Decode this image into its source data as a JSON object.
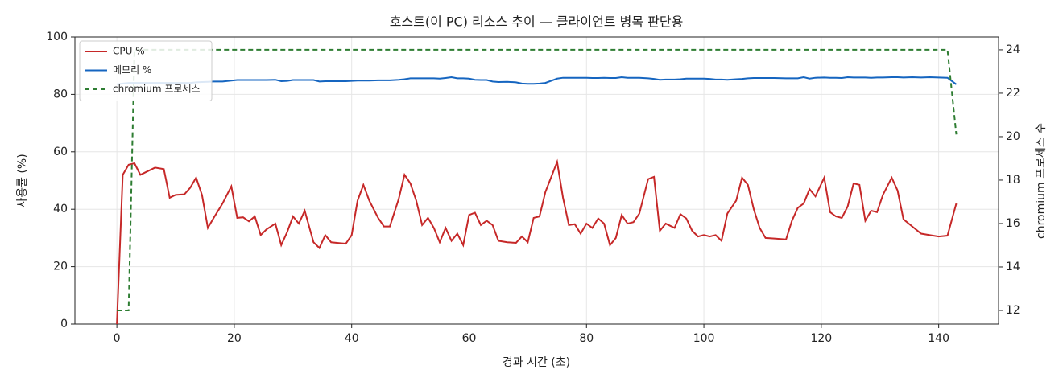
{
  "chart_data": {
    "type": "line",
    "title": "호스트(이 PC) 리소스 추이 — 클라이언트 병목 판단용",
    "xlabel": "경과 시간 (초)",
    "ylabel": "사용률 (%)",
    "y2label": "chromium 프로세스 수",
    "x": [
      0,
      1,
      2,
      3,
      4,
      5,
      6.5,
      8,
      9,
      10,
      11.5,
      12.5,
      13.5,
      14.5,
      15.5,
      16.5,
      18,
      19.5,
      20.5,
      21.5,
      22.5,
      23.5,
      24.5,
      25.5,
      27,
      28,
      29,
      30,
      31,
      32,
      33.5,
      34.5,
      35.5,
      36.5,
      38,
      39,
      40,
      41,
      42,
      43,
      44.5,
      45.5,
      46.5,
      48,
      49,
      50,
      51,
      52,
      53,
      54,
      55,
      56,
      57,
      58,
      59,
      60,
      61,
      62,
      63,
      64,
      65,
      66.5,
      68,
      69,
      70,
      71,
      72,
      73,
      75,
      76,
      77,
      78,
      79,
      80,
      81,
      82,
      83,
      84,
      85,
      86,
      87,
      88,
      89,
      90.5,
      91.5,
      92.5,
      93.5,
      95,
      96,
      97,
      98,
      99,
      100,
      101,
      102,
      103,
      104,
      105.5,
      106.5,
      107.5,
      108.5,
      109.5,
      110.5,
      112,
      114,
      115,
      116,
      117,
      118,
      119,
      120.5,
      121.5,
      122.5,
      123.5,
      124.5,
      125.5,
      126.5,
      127.5,
      128.5,
      129.5,
      130.5,
      132,
      133,
      134,
      135.5,
      137,
      138.5,
      140,
      141.5,
      143
    ],
    "series": [
      {
        "name": "CPU %",
        "color": "#c62828",
        "linestyle": "solid",
        "axis": "y",
        "values": [
          0,
          52,
          55.5,
          56,
          52,
          53,
          54.5,
          54,
          44,
          45,
          45.2,
          47.5,
          51,
          45,
          33.5,
          37,
          42,
          48,
          37,
          37.2,
          35.8,
          37.5,
          31,
          33,
          35,
          27.5,
          32,
          37.5,
          35,
          39.5,
          28.5,
          26.5,
          31,
          28.5,
          28.2,
          28,
          31,
          43,
          48.5,
          43,
          37,
          34,
          34,
          43.5,
          52,
          49,
          43,
          34.5,
          37,
          33.5,
          28.5,
          33.5,
          29,
          31.5,
          27.5,
          38,
          38.8,
          34.5,
          36,
          34.5,
          29,
          28.5,
          28.3,
          30.5,
          28.5,
          37,
          37.5,
          46,
          56.5,
          44,
          34.5,
          34.8,
          31.5,
          35,
          33.5,
          36.8,
          35,
          27.5,
          30,
          38,
          35,
          35.5,
          38.5,
          50.5,
          51.3,
          32.5,
          35,
          33.5,
          38.3,
          36.8,
          32.5,
          30.5,
          31,
          30.5,
          31,
          29,
          38.5,
          43,
          51,
          48.5,
          40,
          33.5,
          30,
          29.8,
          29.5,
          36,
          40.5,
          42,
          47,
          44.5,
          51,
          39,
          37.5,
          37,
          41,
          49,
          48.5,
          36,
          39.5,
          39,
          45,
          51,
          46.5,
          36.5,
          34,
          31.5,
          31,
          30.5,
          30.8,
          42
        ]
      },
      {
        "name": "메모리 %",
        "color": "#1565c0",
        "linestyle": "solid",
        "axis": "y",
        "values": [
          83.5,
          83.8,
          84,
          84,
          84,
          84,
          84,
          84,
          84,
          84,
          84,
          84,
          84.2,
          84.3,
          84.4,
          84.5,
          84.5,
          84.8,
          85,
          85,
          85,
          85,
          85,
          85,
          85.1,
          84.6,
          84.7,
          85,
          85,
          85,
          85,
          84.5,
          84.6,
          84.6,
          84.6,
          84.6,
          84.7,
          84.8,
          84.8,
          84.8,
          84.9,
          84.9,
          84.9,
          85.1,
          85.3,
          85.6,
          85.6,
          85.6,
          85.6,
          85.6,
          85.5,
          85.7,
          86,
          85.6,
          85.6,
          85.5,
          85.1,
          85,
          85,
          84.5,
          84.3,
          84.4,
          84.2,
          83.8,
          83.7,
          83.7,
          83.8,
          84,
          85.5,
          85.8,
          85.8,
          85.8,
          85.8,
          85.8,
          85.7,
          85.7,
          85.8,
          85.7,
          85.7,
          86,
          85.8,
          85.8,
          85.8,
          85.6,
          85.4,
          85.1,
          85.2,
          85.2,
          85.3,
          85.5,
          85.5,
          85.5,
          85.5,
          85.4,
          85.2,
          85.2,
          85.1,
          85.3,
          85.4,
          85.6,
          85.7,
          85.7,
          85.7,
          85.7,
          85.6,
          85.6,
          85.6,
          86,
          85.5,
          85.8,
          85.9,
          85.8,
          85.8,
          85.7,
          86,
          85.9,
          85.9,
          85.9,
          85.8,
          85.9,
          85.9,
          86,
          86,
          85.9,
          86,
          85.9,
          86,
          85.9,
          85.8,
          83.5
        ]
      },
      {
        "name": "chromium 프로세스",
        "color": "#2e7d32",
        "linestyle": "dashed",
        "axis": "y2",
        "values": [
          12,
          12,
          12,
          24,
          24,
          24,
          24,
          24,
          24,
          24,
          24,
          24,
          24,
          24,
          24,
          24,
          24,
          24,
          24,
          24,
          24,
          24,
          24,
          24,
          24,
          24,
          24,
          24,
          24,
          24,
          24,
          24,
          24,
          24,
          24,
          24,
          24,
          24,
          24,
          24,
          24,
          24,
          24,
          24,
          24,
          24,
          24,
          24,
          24,
          24,
          24,
          24,
          24,
          24,
          24,
          24,
          24,
          24,
          24,
          24,
          24,
          24,
          24,
          24,
          24,
          24,
          24,
          24,
          24,
          24,
          24,
          24,
          24,
          24,
          24,
          24,
          24,
          24,
          24,
          24,
          24,
          24,
          24,
          24,
          24,
          24,
          24,
          24,
          24,
          24,
          24,
          24,
          24,
          24,
          24,
          24,
          24,
          24,
          24,
          24,
          24,
          24,
          24,
          24,
          24,
          24,
          24,
          24,
          24,
          24,
          24,
          24,
          24,
          24,
          24,
          24,
          24,
          24,
          24,
          24,
          24,
          24,
          24,
          24,
          24,
          24,
          24,
          24,
          24,
          20.1
        ]
      }
    ],
    "xlim": [
      -7.15,
      150.2
    ],
    "xticks": [
      0,
      20,
      40,
      60,
      80,
      100,
      120,
      140
    ],
    "ylim": [
      0,
      100
    ],
    "yticks": [
      0,
      20,
      40,
      60,
      80,
      100
    ],
    "y2lim": [
      11.37,
      24.59
    ],
    "y2ticks": [
      12,
      14,
      16,
      18,
      20,
      22,
      24
    ],
    "grid": true,
    "legend": "upper left"
  }
}
